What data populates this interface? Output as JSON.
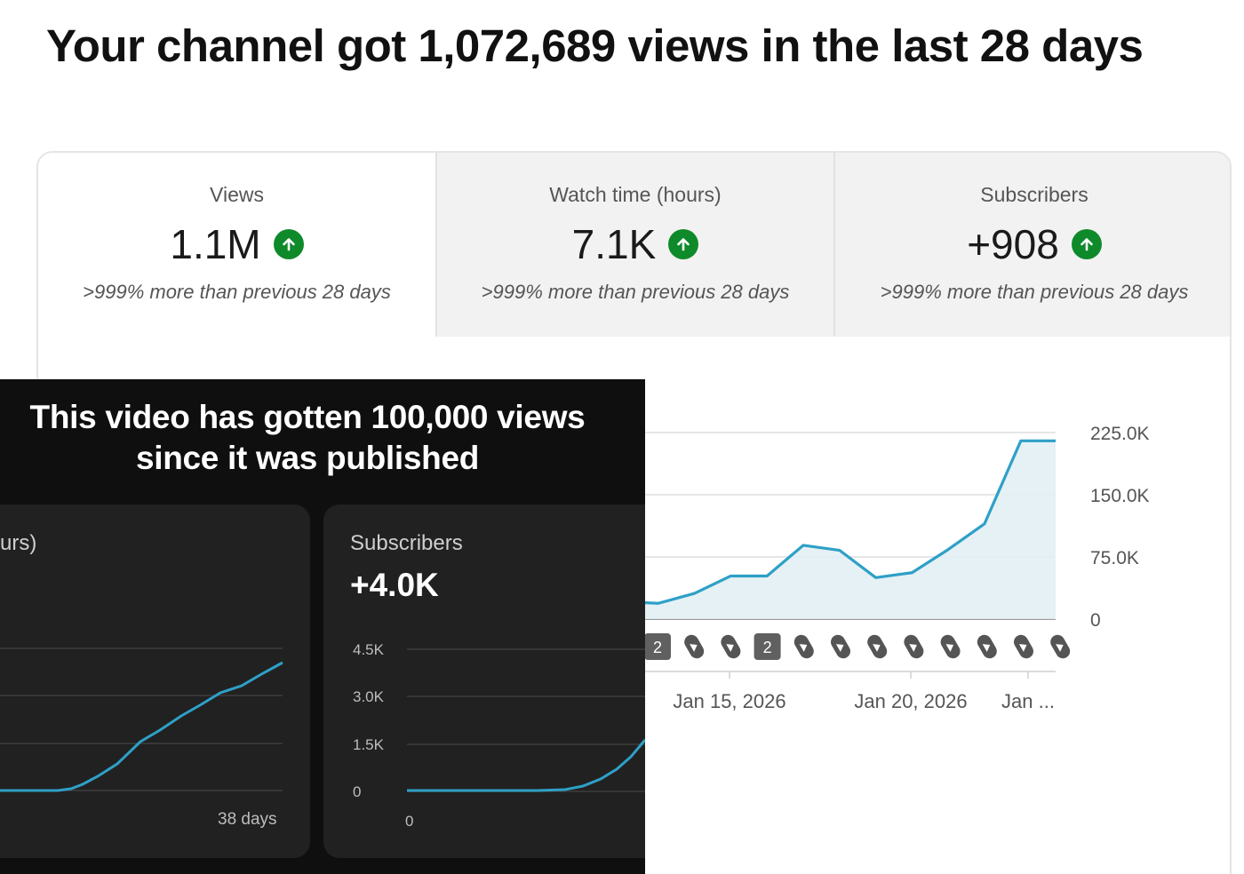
{
  "headline": "Your channel got 1,072,689 views in the last 28 days",
  "stats": [
    {
      "label": "Views",
      "value": "1.1M",
      "sub": ">999% more than previous 28 days"
    },
    {
      "label": "Watch time (hours)",
      "value": "7.1K",
      "sub": ">999% more than previous 28 days"
    },
    {
      "label": "Subscribers",
      "value": "+908",
      "sub": ">999% more than previous 28 days"
    }
  ],
  "overlay": {
    "title_line1": "This video has gotten 100,000 views",
    "title_line2": "since it was published",
    "card1": {
      "label": "urs)",
      "x_end_label": "38 days"
    },
    "card2": {
      "label": "Subscribers",
      "value": "+4.0K",
      "y_ticks": [
        "4.5K",
        "3.0K",
        "1.5K",
        "0"
      ],
      "x_start_label": "0"
    }
  },
  "colors": {
    "line": "#2ea0c7",
    "area": "#e2eff3",
    "up_badge": "#0f8a2a",
    "overlay_bg": "#0f0f0f",
    "overlay_card": "#212121"
  },
  "chart_data": [
    {
      "type": "area",
      "title": "",
      "y_ticks": [
        "225.0K",
        "150.0K",
        "75.0K",
        "0"
      ],
      "ylim": [
        0,
        225000
      ],
      "x_tick_labels": [
        "Jan 15, 2026",
        "Jan 20, 2026",
        "Jan ..."
      ],
      "x_day": [
        12,
        13,
        14,
        15,
        16,
        17,
        18,
        19,
        20,
        21,
        22,
        23,
        24,
        25
      ],
      "values": [
        19000,
        21000,
        19000,
        31000,
        52000,
        52000,
        89000,
        83000,
        50000,
        56000,
        84000,
        115000,
        215000,
        215000
      ],
      "markers": [
        "2",
        "shorts",
        "shorts",
        "2",
        "shorts",
        "shorts",
        "shorts",
        "shorts",
        "shorts",
        "shorts",
        "shorts",
        "shorts"
      ],
      "grid": true
    },
    {
      "type": "line",
      "title": "",
      "series_label": "Subscribers",
      "y_ticks": [
        "4.5K",
        "3.0K",
        "1.5K",
        "0"
      ],
      "ylim": [
        0,
        4500
      ],
      "grid": true
    }
  ]
}
